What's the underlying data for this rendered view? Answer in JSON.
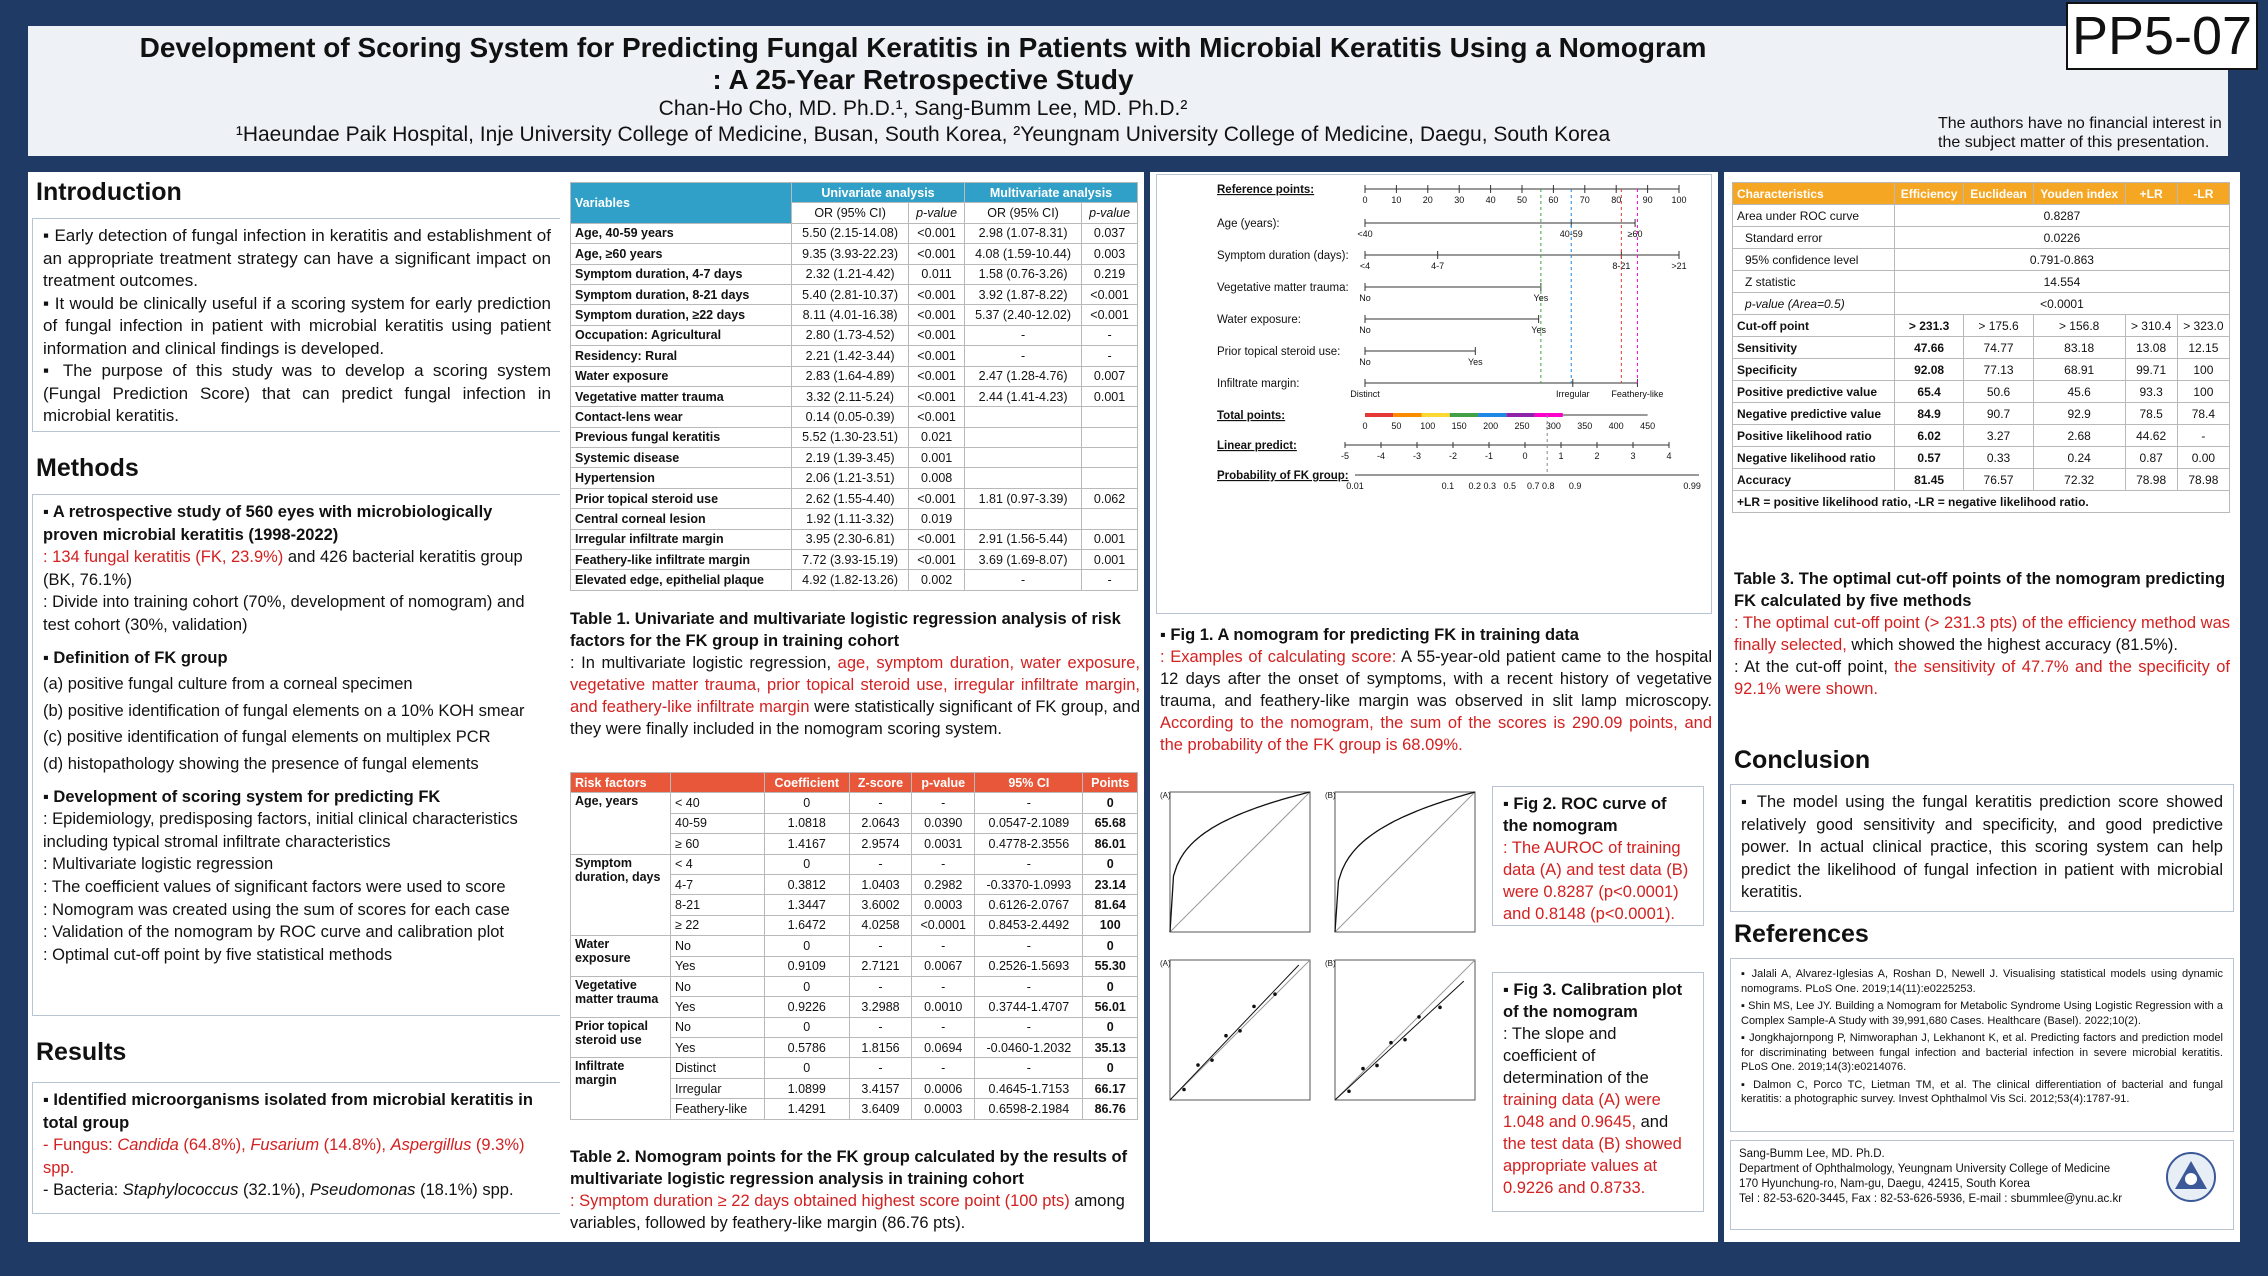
{
  "poster_id": "PP5-07",
  "title_line1": "Development of Scoring System for Predicting Fungal Keratitis in Patients with Microbial Keratitis Using a Nomogram",
  "title_line2": ": A 25-Year Retrospective Study",
  "authors": "Chan-Ho Cho, MD. Ph.D.¹, Sang-Bumm Lee, MD. Ph.D.²",
  "affiliations": "¹Haeundae Paik Hospital, Inje University College of Medicine, Busan, South Korea, ²Yeungnam University College of Medicine, Daegu, South Korea",
  "disclosure": "The authors have no financial interest in the subject matter of this presentation.",
  "intro": {
    "heading": "Introduction",
    "p1": "▪ Early detection of fungal infection in keratitis and establishment of an appropriate treatment strategy can have a significant impact on treatment outcomes.",
    "p2": "▪ It would be clinically useful if a scoring system for early prediction of fungal infection in patient with microbial keratitis using patient information and clinical findings is developed.",
    "p3": "▪ The purpose of this study was to develop a scoring system (Fungal Prediction Score) that can predict fungal infection in microbial keratitis."
  },
  "methods": {
    "heading": "Methods",
    "b1": "▪ A retrospective study of 560 eyes with microbiologically proven microbial keratitis (1998-2022)",
    "b1_red": ": 134 fungal keratitis (FK, 23.9%)",
    "b1_rest": " and 426 bacterial keratitis group (BK, 76.1%)",
    "b1_2": ": Divide into training cohort (70%, development of nomogram) and test cohort (30%, validation)",
    "b2": "▪ Definition of FK group",
    "d": [
      "(a) positive fungal culture from a corneal specimen",
      "(b) positive identification of fungal elements on a 10% KOH smear",
      "(c) positive identification of fungal elements on multiplex PCR",
      "(d) histopathology showing the presence of fungal elements"
    ],
    "b3": "▪ Development of scoring system for predicting FK",
    "s": [
      ": Epidemiology, predisposing factors, initial clinical characteristics including typical stromal infiltrate characteristics",
      ": Multivariate logistic regression",
      ": The coefficient values of significant factors were used to score",
      ": Nomogram was created using the sum of scores for each case",
      ": Validation of the nomogram by ROC curve and calibration plot",
      ": Optimal cut-off point by five statistical methods"
    ]
  },
  "results": {
    "heading": "Results",
    "b1": "▪ Identified microorganisms isolated from microbial keratitis in total group",
    "fungus_lbl": "Fungus: ",
    "f1": "Candida",
    "f1v": " (64.8%), ",
    "f2": "Fusarium",
    "f2v": " (14.8%), ",
    "f3": "Aspergillus",
    "f3v": " (9.3%) spp.",
    "bact_lbl": "Bacteria:  ",
    "b1n": "Staphylococcus",
    "b1v": " (32.1%), ",
    "b2n": "Pseudomonas",
    "b2v": " (18.1%) spp."
  },
  "table1": {
    "h_var": "Variables",
    "h_uni": "Univariate analysis",
    "h_multi": "Multivariate analysis",
    "h_or": "OR (95% CI)",
    "h_p": "p-value",
    "rows": [
      [
        "Age, 40-59 years",
        "5.50 (2.15-14.08)",
        "<0.001",
        "2.98 (1.07-8.31)",
        "0.037"
      ],
      [
        "Age, ≥60 years",
        "9.35 (3.93-22.23)",
        "<0.001",
        "4.08 (1.59-10.44)",
        "0.003"
      ],
      [
        "Symptom duration, 4-7 days",
        "2.32 (1.21-4.42)",
        "0.011",
        "1.58 (0.76-3.26)",
        "0.219"
      ],
      [
        "Symptom duration, 8-21 days",
        "5.40 (2.81-10.37)",
        "<0.001",
        "3.92 (1.87-8.22)",
        "<0.001"
      ],
      [
        "Symptom duration, ≥22 days",
        "8.11 (4.01-16.38)",
        "<0.001",
        "5.37 (2.40-12.02)",
        "<0.001"
      ],
      [
        "Occupation: Agricultural",
        "2.80 (1.73-4.52)",
        "<0.001",
        "-",
        "-"
      ],
      [
        "Residency: Rural",
        "2.21 (1.42-3.44)",
        "<0.001",
        "-",
        "-"
      ],
      [
        "Water exposure",
        "2.83 (1.64-4.89)",
        "<0.001",
        "2.47 (1.28-4.76)",
        "0.007"
      ],
      [
        "Vegetative matter trauma",
        "3.32 (2.11-5.24)",
        "<0.001",
        "2.44 (1.41-4.23)",
        "0.001"
      ],
      [
        "Contact-lens wear",
        "0.14 (0.05-0.39)",
        "<0.001",
        "",
        ""
      ],
      [
        "Previous fungal keratitis",
        "5.52 (1.30-23.51)",
        "0.021",
        "",
        ""
      ],
      [
        "Systemic disease",
        "2.19 (1.39-3.45)",
        "0.001",
        "",
        ""
      ],
      [
        "Hypertension",
        "2.06 (1.21-3.51)",
        "0.008",
        "",
        ""
      ],
      [
        "Prior topical steroid use",
        "2.62 (1.55-4.40)",
        "<0.001",
        "1.81 (0.97-3.39)",
        "0.062"
      ],
      [
        "Central corneal lesion",
        "1.92 (1.11-3.32)",
        "0.019",
        "",
        ""
      ],
      [
        "Irregular infiltrate margin",
        "3.95 (2.30-6.81)",
        "<0.001",
        "2.91 (1.56-5.44)",
        "0.001"
      ],
      [
        "Feathery-like infiltrate margin",
        "7.72 (3.93-15.19)",
        "<0.001",
        "3.69 (1.69-8.07)",
        "0.001"
      ],
      [
        "Elevated edge, epithelial plaque",
        "4.92 (1.82-13.26)",
        "0.002",
        "-",
        "-"
      ]
    ],
    "cap_bold": "Table 1. Univariate and multivariate logistic regression analysis of risk factors for the FK group in training cohort",
    "cap_a": ": In multivariate logistic regression, ",
    "cap_red": "age, symptom duration, water exposure, vegetative matter trauma, prior topical steroid use, irregular infiltrate margin, and feathery-like infiltrate margin",
    "cap_b": " were statistically significant of FK group, and they were finally included in the nomogram scoring system."
  },
  "table2": {
    "headers": [
      "Risk factors",
      "",
      "Coefficient",
      "Z-score",
      "p-value",
      "95% CI",
      "Points"
    ],
    "groups": [
      {
        "name": "Age, years",
        "rows": [
          [
            "< 40",
            "0",
            "-",
            "-",
            "-",
            "0"
          ],
          [
            "40-59",
            "1.0818",
            "2.0643",
            "0.0390",
            "0.0547-2.1089",
            "65.68"
          ],
          [
            "≥ 60",
            "1.4167",
            "2.9574",
            "0.0031",
            "0.4778-2.3556",
            "86.01"
          ]
        ]
      },
      {
        "name": "Symptom duration, days",
        "rows": [
          [
            "< 4",
            "0",
            "-",
            "-",
            "-",
            "0"
          ],
          [
            "4-7",
            "0.3812",
            "1.0403",
            "0.2982",
            "-0.3370-1.0993",
            "23.14"
          ],
          [
            "8-21",
            "1.3447",
            "3.6002",
            "0.0003",
            "0.6126-2.0767",
            "81.64"
          ],
          [
            "≥ 22",
            "1.6472",
            "4.0258",
            "<0.0001",
            "0.8453-2.4492",
            "100"
          ]
        ]
      },
      {
        "name": "Water exposure",
        "rows": [
          [
            "No",
            "0",
            "-",
            "-",
            "-",
            "0"
          ],
          [
            "Yes",
            "0.9109",
            "2.7121",
            "0.0067",
            "0.2526-1.5693",
            "55.30"
          ]
        ]
      },
      {
        "name": "Vegetative matter trauma",
        "rows": [
          [
            "No",
            "0",
            "-",
            "-",
            "-",
            "0"
          ],
          [
            "Yes",
            "0.9226",
            "3.2988",
            "0.0010",
            "0.3744-1.4707",
            "56.01"
          ]
        ]
      },
      {
        "name": "Prior topical steroid use",
        "rows": [
          [
            "No",
            "0",
            "-",
            "-",
            "-",
            "0"
          ],
          [
            "Yes",
            "0.5786",
            "1.8156",
            "0.0694",
            "-0.0460-1.2032",
            "35.13"
          ]
        ]
      },
      {
        "name": "Infiltrate margin",
        "rows": [
          [
            "Distinct",
            "0",
            "-",
            "-",
            "-",
            "0"
          ],
          [
            "Irregular",
            "1.0899",
            "3.4157",
            "0.0006",
            "0.4645-1.7153",
            "66.17"
          ],
          [
            "Feathery-like",
            "1.4291",
            "3.6409",
            "0.0003",
            "0.6598-2.1984",
            "86.76"
          ]
        ]
      }
    ],
    "cap_bold": "Table 2. Nomogram points for the FK group calculated by the results of multivariate logistic regression analysis in training cohort",
    "cap_red": ": Symptom duration ≥ 22 days obtained highest score point (100 pts)",
    "cap_b": " among variables, followed by feathery-like margin (86.76 pts)."
  },
  "fig1": {
    "rows": [
      "Reference points:",
      "Age (years):",
      "Symptom duration (days):",
      "Vegetative matter trauma:",
      "Water exposure:",
      "Prior topical steroid use:",
      "Infiltrate margin:",
      "Total points:",
      "Linear predict:",
      "Probability of FK group:"
    ],
    "ref_ticks": [
      "0",
      "10",
      "20",
      "30",
      "40",
      "50",
      "60",
      "70",
      "80",
      "90",
      "100"
    ],
    "age": [
      "<40",
      "40-59",
      "≥60"
    ],
    "dur": [
      "<4",
      "4-7",
      "8-21",
      ">21"
    ],
    "no": "No",
    "yes": "Yes",
    "margin": [
      "Distinct",
      "Irregular",
      "Feathery-like"
    ],
    "tot_ticks": [
      "0",
      "50",
      "100",
      "150",
      "200",
      "250",
      "300",
      "350",
      "400",
      "450"
    ],
    "lin_ticks": [
      "-5",
      "-4",
      "-3",
      "-2",
      "-1",
      "0",
      "1",
      "2",
      "3",
      "4"
    ],
    "prob_ticks": [
      "0.01",
      "0.1",
      "0.2 0.3",
      "0.5",
      "0.7 0.8",
      "0.9",
      "0.99"
    ],
    "cap_bold": "▪ Fig 1. A nomogram for predicting FK in training data",
    "cap_red1": ": Examples of calculating score:",
    "cap_a": " A 55-year-old patient came to the hospital 12 days after the onset of symptoms, with a recent history of vegetative trauma, and feathery-like margin was observed in slit lamp microscopy. ",
    "cap_red2": "According to the nomogram, the sum of the scores is 290.09 points, and the probability of the FK group is 68.09%."
  },
  "fig2": {
    "cap_bold": "▪ Fig 2. ROC curve of the nomogram",
    "cap_red": ": The AUROC of training data (A) and test data (B) were 0.8287 (p<0.0001) and 0.8148 (p<0.0001).",
    "a": "(A)",
    "b": "(B)"
  },
  "fig3": {
    "cap_bold": "▪ Fig 3. Calibration plot of the nomogram",
    "cap_a": ": The slope and coefficient of determination of the ",
    "cap_red1": "training data (A) were 1.048 and 0.9645,",
    "cap_b": " and ",
    "cap_red2": "the test data (B) showed appropriate values at 0.9226 and 0.8733."
  },
  "table3": {
    "headers": [
      "Characteristics",
      "Efficiency",
      "Euclidean",
      "Youden index",
      "+LR",
      "-LR"
    ],
    "auc": [
      [
        "Area under ROC curve",
        "0.8287"
      ],
      [
        "Standard error",
        "0.0226"
      ],
      [
        "95% confidence level",
        "0.791-0.863"
      ],
      [
        "Z statistic",
        "14.554"
      ],
      [
        "p-value (Area=0.5)",
        "<0.0001"
      ]
    ],
    "rows": [
      [
        "Cut-off point",
        "> 231.3",
        "> 175.6",
        "> 156.8",
        "> 310.4",
        "> 323.0"
      ],
      [
        "Sensitivity",
        "47.66",
        "74.77",
        "83.18",
        "13.08",
        "12.15"
      ],
      [
        "Specificity",
        "92.08",
        "77.13",
        "68.91",
        "99.71",
        "100"
      ],
      [
        "Positive predictive value",
        "65.4",
        "50.6",
        "45.6",
        "93.3",
        "100"
      ],
      [
        "Negative predictive value",
        "84.9",
        "90.7",
        "92.9",
        "78.5",
        "78.4"
      ],
      [
        "Positive likelihood ratio",
        "6.02",
        "3.27",
        "2.68",
        "44.62",
        "-"
      ],
      [
        "Negative likelihood ratio",
        "0.57",
        "0.33",
        "0.24",
        "0.87",
        "0.00"
      ],
      [
        "Accuracy",
        "81.45",
        "76.57",
        "72.32",
        "78.98",
        "78.98"
      ]
    ],
    "foot": "+LR = positive likelihood  ratio, -LR = negative likelihood  ratio.",
    "cap_bold": "Table 3. The optimal cut-off points of the nomogram predicting FK calculated by five methods",
    "cap_red": ": The optimal cut-off point (> 231.3 pts) of the efficiency method was finally selected,",
    "cap_a": " which showed the highest accuracy (81.5%).",
    "cap_b": ": At the cut-off point, ",
    "cap_red2": "the sensitivity of 47.7% and the specificity of 92.1% were shown."
  },
  "conclusion": {
    "heading": "Conclusion",
    "text": "▪ The model using the fungal keratitis prediction score showed relatively good sensitivity and specificity, and good predictive power. In actual clinical practice, this scoring system can help predict the likelihood of fungal infection in patient with microbial keratitis."
  },
  "references": {
    "heading": "References",
    "items": [
      "▪ Jalali A, Alvarez-Iglesias A, Roshan D, Newell J. Visualising statistical models using dynamic nomograms. PLoS One. 2019;14(11):e0225253.",
      "▪ Shin MS, Lee JY. Building a Nomogram for Metabolic Syndrome Using Logistic Regression with a Complex Sample-A Study with 39,991,680 Cases. Healthcare (Basel). 2022;10(2).",
      "▪ Jongkhajornpong P, Nimworaphan J, Lekhanont K, et al. Predicting factors and prediction model for discriminating between fungal infection and bacterial infection in severe microbial keratitis. PLoS One. 2019;14(3):e0214076.",
      "▪ Dalmon C, Porco TC, Lietman TM, et al. The clinical differentiation of bacterial and fungal keratitis: a photographic survey. Invest Ophthalmol Vis Sci. 2012;53(4):1787-91."
    ]
  },
  "contact": {
    "name": "Sang-Bumm Lee,  MD. Ph.D.",
    "dept": "Department of Ophthalmology, Yeungnam University College of Medicine",
    "addr": "170 Hyunchung-ro, Nam-gu, Daegu, 42415, South Korea",
    "tel": "Tel : 82-53-620-3445, Fax : 82-53-626-5936, E-mail : sbummlee@ynu.ac.kr"
  },
  "roc": {
    "train_auc": 0.8287,
    "test_auc": 0.8148
  },
  "calib": {
    "train_slope": 1.048,
    "train_r2": 0.9645,
    "test_slope": 0.9226,
    "test_r2": 0.8733
  }
}
